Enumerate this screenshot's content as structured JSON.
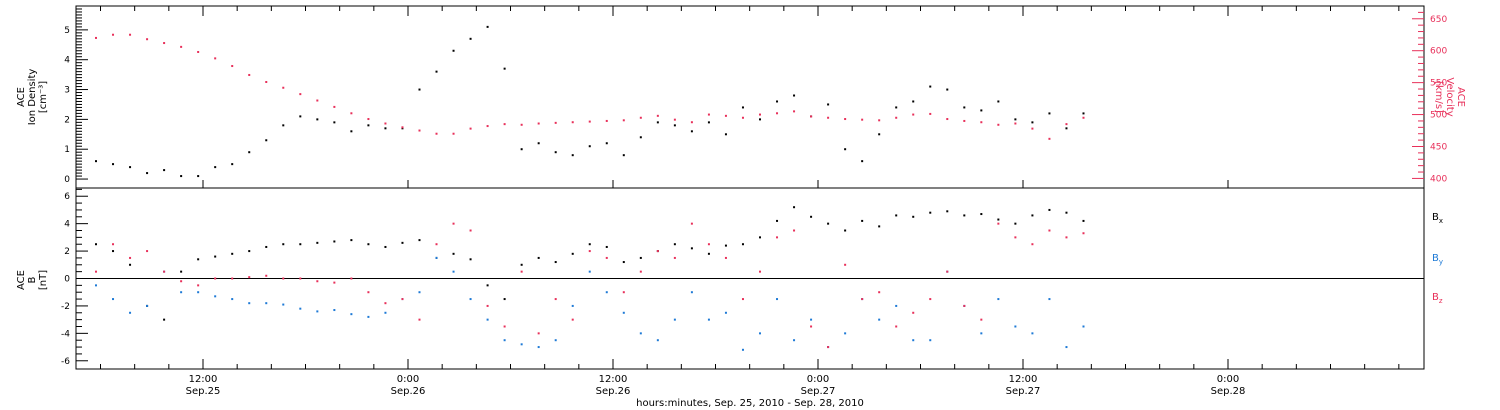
{
  "chart_data": [
    {
      "type": "scatter",
      "panel": "top",
      "ylabel_left": [
        "ACE",
        "Ion Density",
        "[cm⁻³]"
      ],
      "ylabel_right": [
        "ACE",
        "Velocity",
        "[km/s]"
      ],
      "ylim_left": [
        -0.3,
        5.8
      ],
      "ylim_right": [
        385,
        670
      ],
      "yticks_left": [
        "0",
        "1",
        "2",
        "3",
        "4",
        "5"
      ],
      "yticks_right": [
        "400",
        "450",
        "500",
        "550",
        "600",
        "650"
      ],
      "grid": false,
      "series": [
        {
          "axis": "left",
          "color": "#000000",
          "x": [
            0,
            0.06,
            0.12,
            0.18,
            0.24,
            0.3,
            0.36,
            0.42,
            0.48,
            0.54,
            0.6,
            0.66,
            0.72,
            0.78,
            0.84,
            0.9,
            0.96,
            1.02,
            1.08,
            1.14,
            1.2,
            1.26,
            1.32,
            1.38,
            1.44,
            1.5,
            1.56,
            1.62,
            1.68,
            1.74,
            1.8,
            1.86,
            1.92,
            1.98,
            2.04,
            2.1,
            2.16,
            2.22,
            2.28,
            2.34,
            2.4,
            2.46,
            2.52,
            2.58,
            2.64,
            2.7,
            2.76,
            2.82,
            2.88,
            2.94,
            3.0,
            3.06,
            3.12,
            3.18,
            3.24,
            3.3,
            3.36,
            3.42,
            3.48
          ],
          "y": [
            0.6,
            0.5,
            0.4,
            0.2,
            0.3,
            0.1,
            0.1,
            0.4,
            0.5,
            0.9,
            1.3,
            1.8,
            2.1,
            2.0,
            1.9,
            1.6,
            1.8,
            1.7,
            1.7,
            3.0,
            3.6,
            4.3,
            4.7,
            5.1,
            3.7,
            1.0,
            1.2,
            0.9,
            0.8,
            1.1,
            1.2,
            0.8,
            1.4,
            1.9,
            1.8,
            1.6,
            1.9,
            1.5,
            2.4,
            2.0,
            2.6,
            2.8,
            2.1,
            2.5,
            1.0,
            0.6,
            1.5,
            2.4,
            2.6,
            3.1,
            3.0,
            2.4,
            2.3,
            2.6,
            2.0,
            1.9,
            2.2,
            1.7,
            2.2
          ]
        },
        {
          "axis": "right",
          "color": "#e8305a",
          "x": [
            0,
            0.06,
            0.12,
            0.18,
            0.24,
            0.3,
            0.36,
            0.42,
            0.48,
            0.54,
            0.6,
            0.66,
            0.72,
            0.78,
            0.84,
            0.9,
            0.96,
            1.02,
            1.08,
            1.14,
            1.2,
            1.26,
            1.32,
            1.38,
            1.44,
            1.5,
            1.56,
            1.62,
            1.68,
            1.74,
            1.8,
            1.86,
            1.92,
            1.98,
            2.04,
            2.1,
            2.16,
            2.22,
            2.28,
            2.34,
            2.4,
            2.46,
            2.52,
            2.58,
            2.64,
            2.7,
            2.76,
            2.82,
            2.88,
            2.94,
            3.0,
            3.06,
            3.12,
            3.18,
            3.24,
            3.3,
            3.36,
            3.42,
            3.48
          ],
          "y": [
            620,
            625,
            625,
            618,
            612,
            606,
            598,
            588,
            576,
            562,
            551,
            542,
            532,
            522,
            512,
            502,
            493,
            486,
            480,
            475,
            470,
            470,
            478,
            482,
            485,
            484,
            486,
            487,
            488,
            489,
            490,
            491,
            495,
            498,
            492,
            488,
            500,
            498,
            495,
            500,
            502,
            505,
            497,
            495,
            493,
            492,
            491,
            495,
            500,
            501,
            493,
            490,
            488,
            484,
            486,
            478,
            462,
            485,
            495
          ]
        }
      ]
    },
    {
      "type": "scatter",
      "panel": "bottom",
      "ylabel": [
        "ACE",
        "B",
        "[nT]"
      ],
      "ylim": [
        -6.6,
        6.6
      ],
      "yticks": [
        "-6",
        "-4",
        "-2",
        "0",
        "2",
        "4",
        "6"
      ],
      "grid": false,
      "series": [
        {
          "name": "B",
          "subscript": "x",
          "color": "#000000",
          "x": [
            0,
            0.06,
            0.12,
            0.18,
            0.24,
            0.3,
            0.36,
            0.42,
            0.48,
            0.54,
            0.6,
            0.66,
            0.72,
            0.78,
            0.84,
            0.9,
            0.96,
            1.02,
            1.08,
            1.14,
            1.2,
            1.26,
            1.32,
            1.38,
            1.44,
            1.5,
            1.56,
            1.62,
            1.68,
            1.74,
            1.8,
            1.86,
            1.92,
            1.98,
            2.04,
            2.1,
            2.16,
            2.22,
            2.28,
            2.34,
            2.4,
            2.46,
            2.52,
            2.58,
            2.64,
            2.7,
            2.76,
            2.82,
            2.88,
            2.94,
            3.0,
            3.06,
            3.12,
            3.18,
            3.24,
            3.3,
            3.36,
            3.42,
            3.48
          ],
          "y": [
            2.5,
            2.0,
            1.0,
            -2.0,
            -3.0,
            0.5,
            1.4,
            1.6,
            1.8,
            2.0,
            2.3,
            2.5,
            2.5,
            2.6,
            2.7,
            2.8,
            2.5,
            2.3,
            2.6,
            2.8,
            1.5,
            1.8,
            1.4,
            -0.5,
            -1.5,
            1.0,
            1.5,
            1.2,
            1.8,
            2.5,
            2.3,
            1.2,
            1.5,
            2.0,
            2.5,
            2.2,
            1.8,
            2.4,
            2.5,
            3.0,
            4.2,
            5.2,
            4.5,
            4.0,
            3.5,
            4.2,
            3.8,
            4.6,
            4.5,
            4.8,
            4.9,
            4.6,
            4.7,
            4.3,
            4.0,
            4.6,
            5.0,
            4.8,
            4.2
          ]
        },
        {
          "name": "B",
          "subscript": "y",
          "color": "#1e7ad6",
          "x": [
            0,
            0.06,
            0.12,
            0.18,
            0.24,
            0.3,
            0.36,
            0.42,
            0.48,
            0.54,
            0.6,
            0.66,
            0.72,
            0.78,
            0.84,
            0.9,
            0.96,
            1.02,
            1.08,
            1.14,
            1.2,
            1.26,
            1.32,
            1.38,
            1.44,
            1.5,
            1.56,
            1.62,
            1.68,
            1.74,
            1.8,
            1.86,
            1.92,
            1.98,
            2.04,
            2.1,
            2.16,
            2.22,
            2.28,
            2.34,
            2.4,
            2.46,
            2.52,
            2.58,
            2.64,
            2.7,
            2.76,
            2.82,
            2.88,
            2.94,
            3.0,
            3.06,
            3.12,
            3.18,
            3.24,
            3.3,
            3.36,
            3.42,
            3.48
          ],
          "y": [
            -0.5,
            -1.5,
            -2.5,
            -2.0,
            0.5,
            -1.0,
            -1.0,
            -1.3,
            -1.5,
            -1.8,
            -1.8,
            -1.9,
            -2.2,
            -2.4,
            -2.3,
            -2.6,
            -2.8,
            -2.5,
            -1.5,
            -1.0,
            1.5,
            0.5,
            -1.5,
            -3.0,
            -4.5,
            -4.8,
            -5.0,
            -4.5,
            -2.0,
            0.5,
            -1.0,
            -2.5,
            -4.0,
            -4.5,
            -3.0,
            -1.0,
            -3.0,
            -2.5,
            -5.2,
            -4.0,
            -1.5,
            -4.5,
            -3.0,
            -5.0,
            -4.0,
            -1.5,
            -3.0,
            -2.0,
            -4.5,
            -4.5,
            0.5,
            -2.0,
            -4.0,
            -1.5,
            -3.5,
            -4.0,
            -1.5,
            -5.0,
            -3.5
          ]
        },
        {
          "name": "B",
          "subscript": "z",
          "color": "#e8305a",
          "x": [
            0,
            0.06,
            0.12,
            0.18,
            0.24,
            0.3,
            0.36,
            0.42,
            0.48,
            0.54,
            0.6,
            0.66,
            0.72,
            0.78,
            0.84,
            0.9,
            0.96,
            1.02,
            1.08,
            1.14,
            1.2,
            1.26,
            1.32,
            1.38,
            1.44,
            1.5,
            1.56,
            1.62,
            1.68,
            1.74,
            1.8,
            1.86,
            1.92,
            1.98,
            2.04,
            2.1,
            2.16,
            2.22,
            2.28,
            2.34,
            2.4,
            2.46,
            2.52,
            2.58,
            2.64,
            2.7,
            2.76,
            2.82,
            2.88,
            2.94,
            3.0,
            3.06,
            3.12,
            3.18,
            3.24,
            3.3,
            3.36,
            3.42,
            3.48
          ],
          "y": [
            0.5,
            2.5,
            1.5,
            2.0,
            0.5,
            -0.2,
            -0.5,
            0.0,
            0.0,
            0.1,
            0.2,
            0.0,
            0.0,
            -0.2,
            -0.3,
            0.0,
            -1.0,
            -1.8,
            -1.5,
            -3.0,
            2.5,
            4.0,
            3.5,
            -2.0,
            -3.5,
            0.5,
            -4.0,
            -1.5,
            -3.0,
            2.0,
            1.5,
            -1.0,
            0.5,
            2.0,
            1.5,
            4.0,
            2.5,
            1.5,
            -1.5,
            0.5,
            3.0,
            3.5,
            -3.5,
            -5.0,
            1.0,
            -1.5,
            -1.0,
            -3.5,
            -2.5,
            -1.5,
            0.5,
            -2.0,
            -3.0,
            4.0,
            3.0,
            2.5,
            3.5,
            3.0,
            3.3
          ]
        }
      ]
    }
  ],
  "x_axis": {
    "tick_labels": [
      {
        "time": "12:00",
        "date": "Sep.25"
      },
      {
        "time": "0:00",
        "date": "Sep.26"
      },
      {
        "time": "12:00",
        "date": "Sep.26"
      },
      {
        "time": "0:00",
        "date": "Sep.27"
      },
      {
        "time": "12:00",
        "date": "Sep.27"
      },
      {
        "time": "0:00",
        "date": "Sep.28"
      }
    ],
    "xlabel": "hours:minutes, Sep. 25, 2010 - Sep. 28, 2010"
  },
  "colors": {
    "black": "#000000",
    "pink": "#e8305a",
    "blue": "#1e7ad6"
  }
}
